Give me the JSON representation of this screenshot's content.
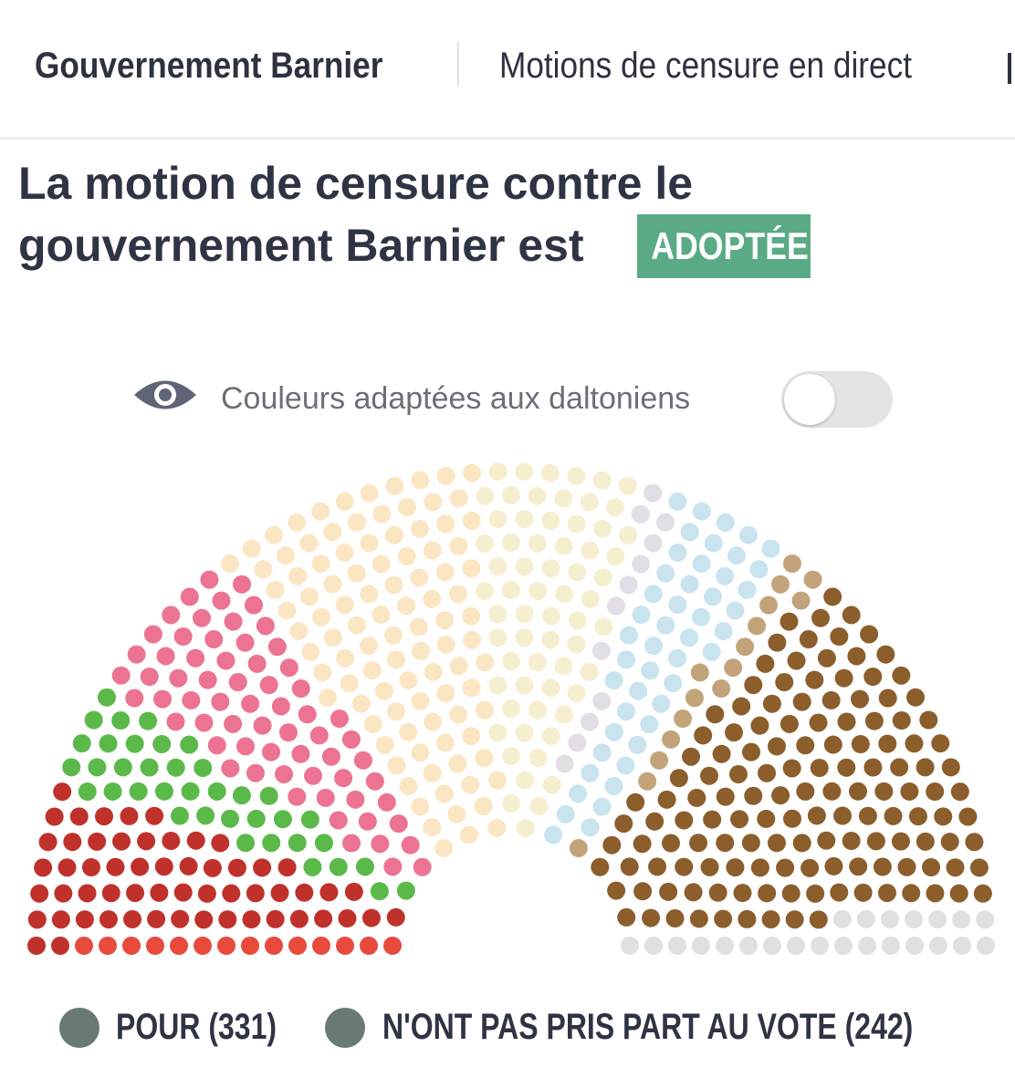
{
  "nav": {
    "tabs": [
      "Gouvernement Barnier",
      "Motions de censure en direct"
    ]
  },
  "heading": {
    "text_line1": "La motion de censure contre le",
    "text_line2": "gouvernement Barnier est",
    "badge": "ADOPTÉE"
  },
  "toggle": {
    "label": "Couleurs adaptées aux daltoniens"
  },
  "legend": {
    "items": [
      "POUR (331)",
      "N'ONT PAS PRIS PART AU VOTE (242)"
    ]
  }
}
